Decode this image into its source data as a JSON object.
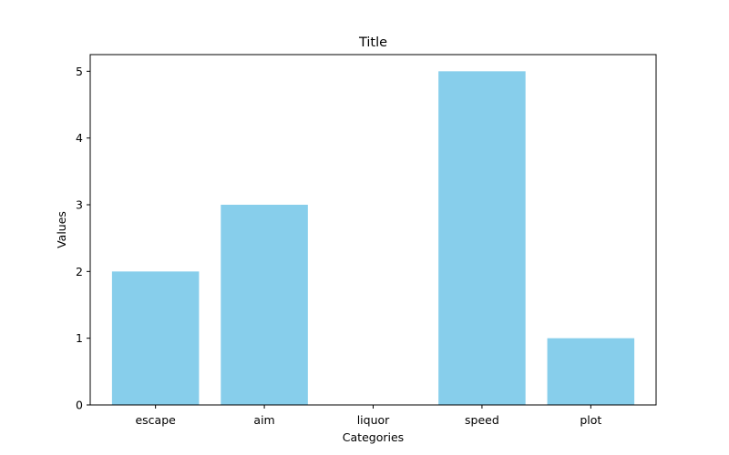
{
  "chart_data": {
    "type": "bar",
    "title": "Title",
    "xlabel": "Categories",
    "ylabel": "Values",
    "categories": [
      "escape",
      "aim",
      "liquor",
      "speed",
      "plot"
    ],
    "values": [
      2,
      3,
      0,
      5,
      1
    ],
    "ylim": [
      0,
      5.25
    ],
    "yticks": [
      0,
      1,
      2,
      3,
      4,
      5
    ],
    "bar_color": "#87CEEB",
    "grid": false,
    "legend": "none"
  }
}
